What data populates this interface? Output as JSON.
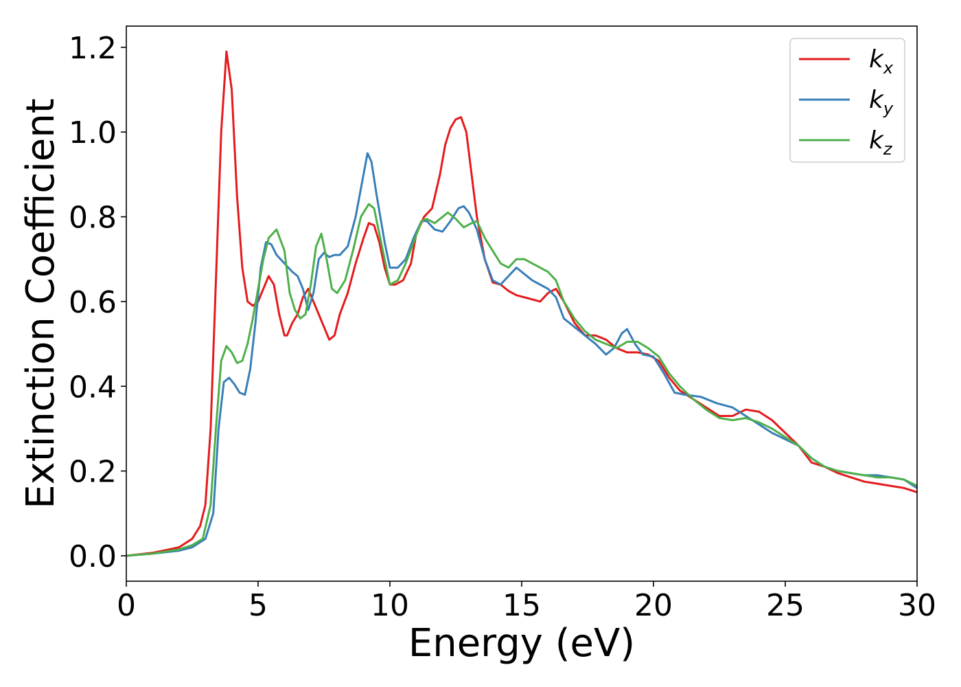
{
  "chart_data": {
    "type": "line",
    "xlabel": "Energy (eV)",
    "ylabel": "Extinction Coefficient",
    "xlim": [
      0,
      30
    ],
    "ylim": [
      -0.06,
      1.25
    ],
    "xticks": [
      0,
      5,
      10,
      15,
      20,
      25,
      30
    ],
    "xtick_labels": [
      "0",
      "5",
      "10",
      "15",
      "20",
      "25",
      "30"
    ],
    "yticks": [
      0.0,
      0.2,
      0.4,
      0.6,
      0.8,
      1.0,
      1.2
    ],
    "ytick_labels": [
      "0.0",
      "0.2",
      "0.4",
      "0.6",
      "0.8",
      "1.0",
      "1.2"
    ],
    "grid": false,
    "legend_position": "top-right",
    "series": [
      {
        "name": "k_x",
        "label_main": "k",
        "label_sub": "x",
        "color": "#e41a1c",
        "x": [
          0,
          1,
          2,
          2.5,
          2.8,
          3.0,
          3.2,
          3.4,
          3.6,
          3.8,
          4.0,
          4.2,
          4.4,
          4.6,
          4.8,
          5.0,
          5.2,
          5.4,
          5.6,
          5.8,
          6.0,
          6.1,
          6.3,
          6.5,
          6.7,
          6.9,
          7.1,
          7.3,
          7.5,
          7.7,
          7.9,
          8.1,
          8.4,
          8.7,
          9.0,
          9.2,
          9.4,
          9.6,
          9.8,
          10.0,
          10.2,
          10.5,
          10.8,
          11.0,
          11.3,
          11.6,
          11.9,
          12.1,
          12.3,
          12.5,
          12.7,
          12.9,
          13.1,
          13.3,
          13.6,
          13.9,
          14.2,
          14.5,
          14.8,
          15.1,
          15.4,
          15.7,
          16.0,
          16.3,
          16.6,
          17.0,
          17.4,
          17.8,
          18.2,
          18.6,
          19.0,
          19.4,
          19.8,
          20.2,
          20.6,
          21.0,
          21.5,
          22.0,
          22.5,
          23.0,
          23.5,
          24.0,
          24.5,
          25.0,
          25.5,
          26.0,
          26.5,
          27.0,
          27.5,
          28.0,
          28.5,
          29.0,
          29.5,
          30.0
        ],
        "y": [
          0.0,
          0.007,
          0.02,
          0.04,
          0.07,
          0.12,
          0.3,
          0.65,
          1.0,
          1.19,
          1.1,
          0.85,
          0.68,
          0.6,
          0.59,
          0.6,
          0.63,
          0.66,
          0.64,
          0.57,
          0.52,
          0.52,
          0.55,
          0.57,
          0.61,
          0.63,
          0.6,
          0.57,
          0.54,
          0.51,
          0.52,
          0.57,
          0.62,
          0.69,
          0.75,
          0.785,
          0.78,
          0.74,
          0.68,
          0.64,
          0.64,
          0.65,
          0.69,
          0.76,
          0.8,
          0.82,
          0.9,
          0.97,
          1.01,
          1.03,
          1.035,
          1.0,
          0.9,
          0.8,
          0.7,
          0.645,
          0.64,
          0.625,
          0.615,
          0.61,
          0.605,
          0.6,
          0.62,
          0.63,
          0.6,
          0.55,
          0.52,
          0.52,
          0.51,
          0.49,
          0.48,
          0.48,
          0.475,
          0.46,
          0.42,
          0.39,
          0.37,
          0.35,
          0.33,
          0.33,
          0.345,
          0.34,
          0.32,
          0.29,
          0.26,
          0.22,
          0.21,
          0.195,
          0.185,
          0.175,
          0.17,
          0.165,
          0.16,
          0.15
        ]
      },
      {
        "name": "k_y",
        "label_main": "k",
        "label_sub": "y",
        "color": "#377eb8",
        "x": [
          0,
          1,
          2,
          2.5,
          3.0,
          3.3,
          3.5,
          3.7,
          3.9,
          4.1,
          4.3,
          4.5,
          4.7,
          4.9,
          5.1,
          5.3,
          5.5,
          5.7,
          6.0,
          6.3,
          6.5,
          6.7,
          6.9,
          7.1,
          7.3,
          7.5,
          7.7,
          7.9,
          8.1,
          8.4,
          8.7,
          9.0,
          9.15,
          9.3,
          9.5,
          9.8,
          10.0,
          10.3,
          10.6,
          10.9,
          11.2,
          11.4,
          11.7,
          12.0,
          12.3,
          12.6,
          12.8,
          13.0,
          13.3,
          13.6,
          13.9,
          14.2,
          14.5,
          14.8,
          15.1,
          15.4,
          15.7,
          16.0,
          16.3,
          16.6,
          17.0,
          17.4,
          17.8,
          18.2,
          18.5,
          18.8,
          19.0,
          19.3,
          19.6,
          20.0,
          20.4,
          20.8,
          21.2,
          21.8,
          22.4,
          23.0,
          23.5,
          24.0,
          24.5,
          25.0,
          25.5,
          26.0,
          26.5,
          27.0,
          27.5,
          28.0,
          28.5,
          29.0,
          29.5,
          30.0
        ],
        "y": [
          0.0,
          0.005,
          0.012,
          0.02,
          0.04,
          0.1,
          0.3,
          0.41,
          0.42,
          0.405,
          0.385,
          0.38,
          0.44,
          0.55,
          0.68,
          0.74,
          0.735,
          0.71,
          0.69,
          0.67,
          0.66,
          0.63,
          0.58,
          0.62,
          0.7,
          0.715,
          0.705,
          0.71,
          0.71,
          0.73,
          0.8,
          0.9,
          0.95,
          0.93,
          0.85,
          0.74,
          0.68,
          0.68,
          0.7,
          0.75,
          0.79,
          0.79,
          0.77,
          0.765,
          0.79,
          0.82,
          0.825,
          0.81,
          0.77,
          0.7,
          0.65,
          0.64,
          0.66,
          0.68,
          0.665,
          0.65,
          0.64,
          0.63,
          0.61,
          0.56,
          0.54,
          0.52,
          0.5,
          0.475,
          0.49,
          0.525,
          0.535,
          0.5,
          0.475,
          0.47,
          0.43,
          0.385,
          0.38,
          0.375,
          0.36,
          0.35,
          0.33,
          0.31,
          0.29,
          0.275,
          0.26,
          0.23,
          0.21,
          0.2,
          0.195,
          0.19,
          0.19,
          0.185,
          0.18,
          0.16
        ]
      },
      {
        "name": "k_z",
        "label_main": "k",
        "label_sub": "z",
        "color": "#4daf4a",
        "x": [
          0,
          1,
          2,
          2.5,
          2.9,
          3.2,
          3.4,
          3.6,
          3.8,
          4.0,
          4.2,
          4.4,
          4.6,
          4.8,
          5.0,
          5.2,
          5.4,
          5.7,
          6.0,
          6.2,
          6.4,
          6.6,
          6.8,
          7.0,
          7.2,
          7.4,
          7.6,
          7.8,
          8.0,
          8.3,
          8.6,
          8.9,
          9.2,
          9.4,
          9.7,
          10.0,
          10.3,
          10.6,
          10.9,
          11.2,
          11.4,
          11.7,
          12.0,
          12.2,
          12.5,
          12.8,
          13.1,
          13.3,
          13.6,
          13.9,
          14.2,
          14.5,
          14.8,
          15.1,
          15.4,
          15.7,
          16.0,
          16.3,
          16.6,
          17.0,
          17.4,
          17.8,
          18.2,
          18.6,
          19.0,
          19.4,
          19.8,
          20.2,
          20.6,
          21.0,
          21.5,
          22.0,
          22.5,
          23.0,
          23.5,
          24.0,
          24.5,
          25.0,
          25.5,
          26.0,
          26.5,
          27.0,
          27.5,
          28.0,
          28.5,
          29.0,
          29.5,
          30.0
        ],
        "y": [
          0.0,
          0.005,
          0.015,
          0.025,
          0.04,
          0.12,
          0.3,
          0.46,
          0.495,
          0.48,
          0.455,
          0.46,
          0.5,
          0.56,
          0.63,
          0.7,
          0.75,
          0.77,
          0.72,
          0.62,
          0.58,
          0.56,
          0.57,
          0.64,
          0.73,
          0.76,
          0.7,
          0.63,
          0.62,
          0.65,
          0.72,
          0.8,
          0.83,
          0.82,
          0.73,
          0.64,
          0.65,
          0.69,
          0.74,
          0.79,
          0.795,
          0.785,
          0.8,
          0.81,
          0.795,
          0.775,
          0.785,
          0.79,
          0.75,
          0.72,
          0.69,
          0.68,
          0.7,
          0.7,
          0.69,
          0.68,
          0.67,
          0.65,
          0.6,
          0.56,
          0.53,
          0.51,
          0.5,
          0.49,
          0.505,
          0.505,
          0.49,
          0.47,
          0.43,
          0.4,
          0.37,
          0.345,
          0.325,
          0.32,
          0.325,
          0.315,
          0.3,
          0.28,
          0.26,
          0.23,
          0.21,
          0.2,
          0.195,
          0.19,
          0.185,
          0.185,
          0.18,
          0.165
        ]
      }
    ]
  }
}
